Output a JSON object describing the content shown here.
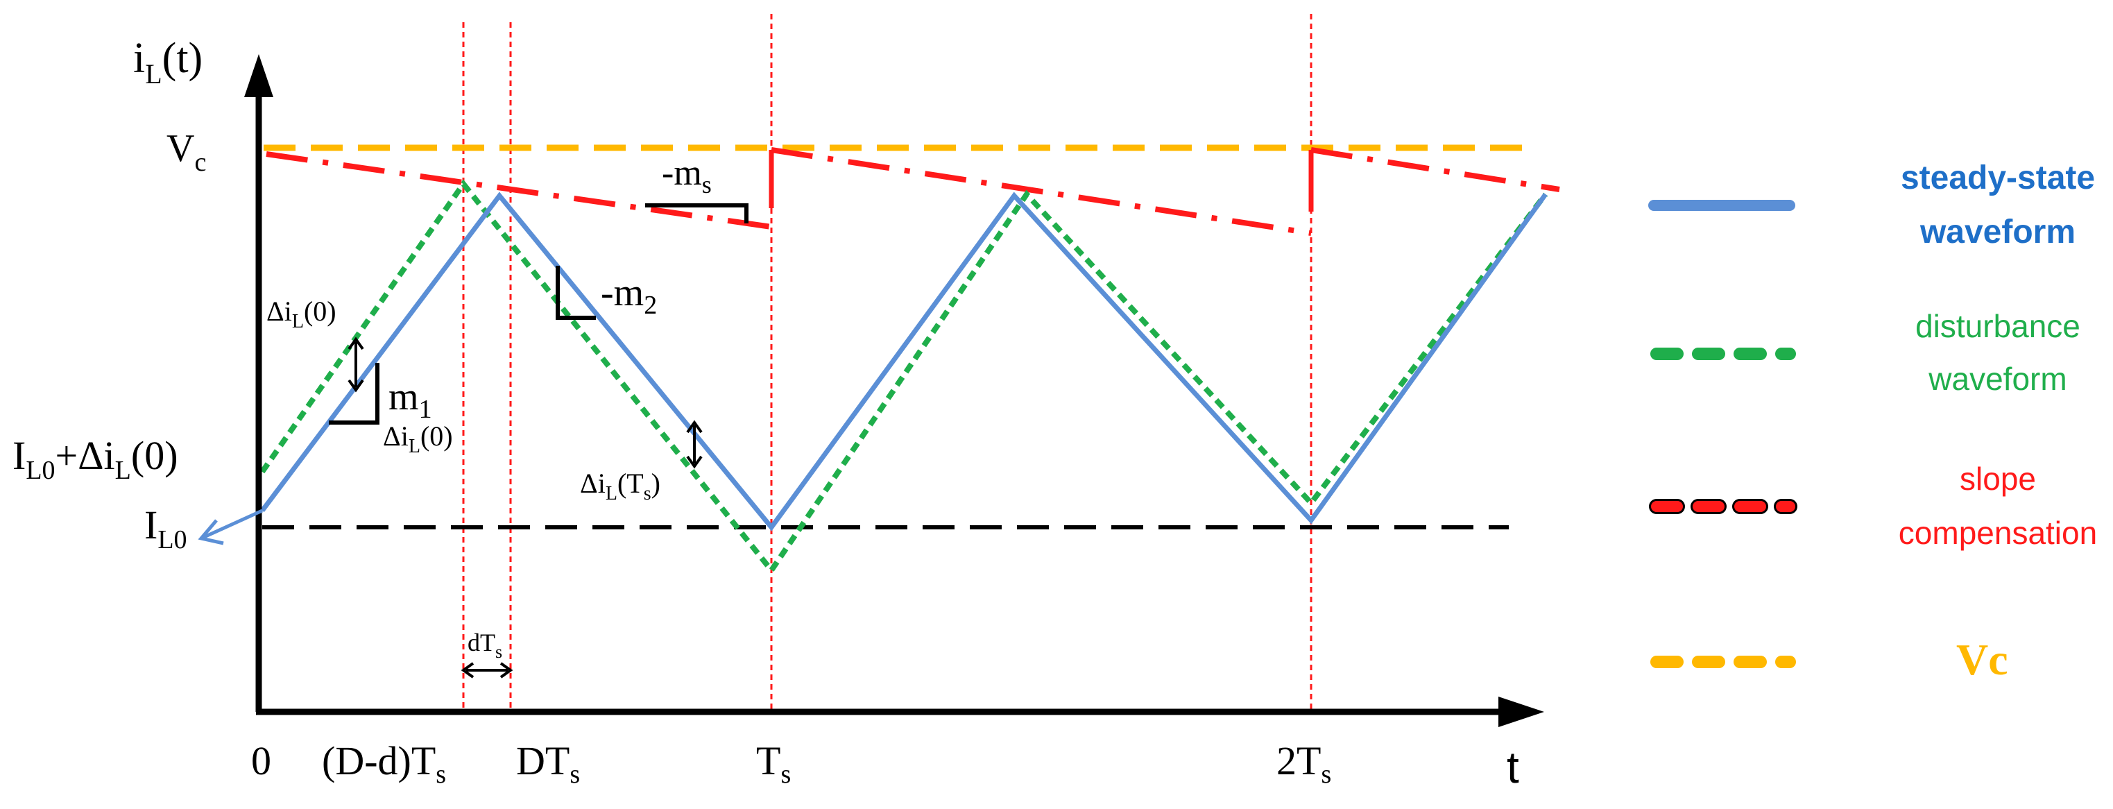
{
  "colors": {
    "axis": "#000000",
    "steady": "#5B8FD6",
    "disturbance": "#1FAE4B",
    "slope": "#FF1A1A",
    "vc": "#FFB800",
    "guide": "#FF1A1A",
    "baseline": "#000000",
    "legend_steady": "#1E6FC8"
  },
  "axes": {
    "y_label_main": "i",
    "y_label_sub": "L",
    "y_label_tail": "(t)",
    "x_label": "t"
  },
  "y_levels": {
    "vc_main": "V",
    "vc_sub": "c",
    "il0_main": "I",
    "il0_sub": "L0",
    "il0_plus_a": "I",
    "il0_plus_sub": "L0",
    "il0_plus_b": "+Δi",
    "il0_plus_sub2": "L",
    "il0_plus_c": "(0)"
  },
  "x_ticks": {
    "zero": "0",
    "dd_main": "(D-d)T",
    "dd_sub": "s",
    "dt_main": "DT",
    "dt_sub": "s",
    "ts_main": "T",
    "ts_sub": "s",
    "ts2_main": "2T",
    "ts2_sub": "s"
  },
  "annotations": {
    "m1_main": "m",
    "m1_sub": "1",
    "m2_main": "-m",
    "m2_sub": "2",
    "ms_main": "-m",
    "ms_sub": "s",
    "delta_top_a": "Δi",
    "delta_top_sub": "L",
    "delta_top_b": "(0)",
    "delta_low_a": "Δi",
    "delta_low_sub": "L",
    "delta_low_b": "(0)",
    "delta_ts_a": "Δi",
    "delta_ts_sub": "L",
    "delta_ts_b": "(T",
    "delta_ts_sub2": "s",
    "delta_ts_c": ")",
    "dts_main": "dT",
    "dts_sub": "s"
  },
  "legend": {
    "steady_line1": "steady-state",
    "steady_line2": "waveform",
    "disturbance_line1": "disturbance",
    "disturbance_line2": "waveform",
    "slope_line1": "slope",
    "slope_line2": "compensation",
    "vc": "Vc"
  }
}
